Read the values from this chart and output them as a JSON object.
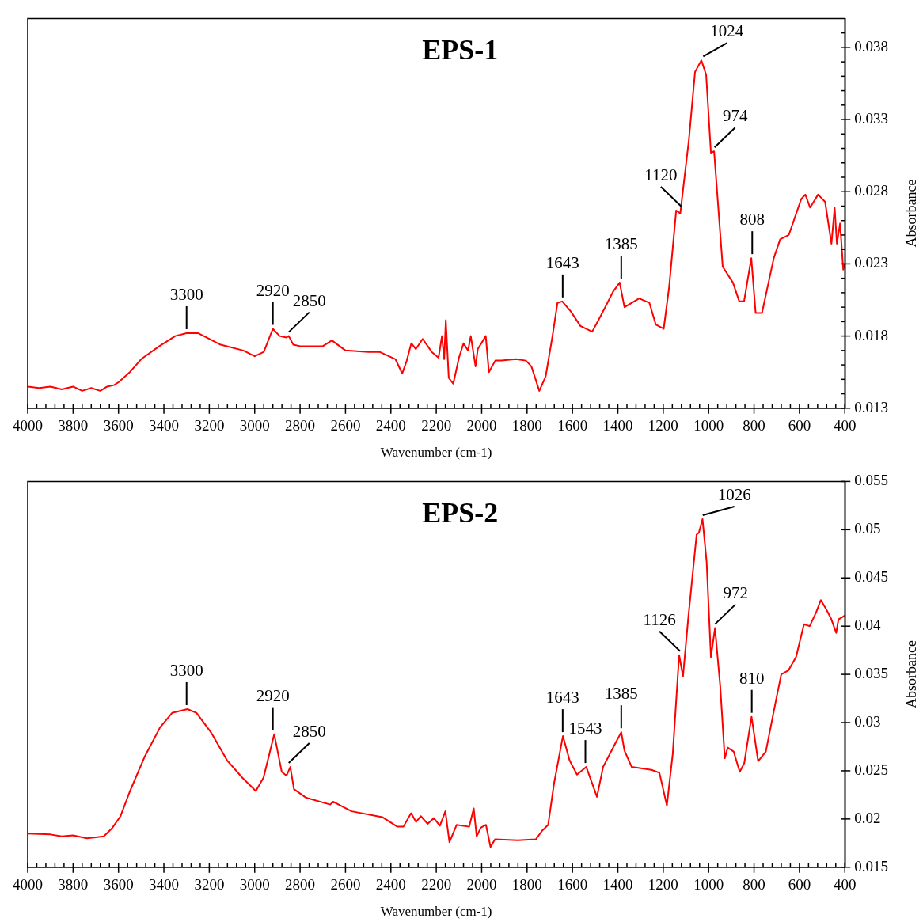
{
  "chart_data": [
    {
      "type": "line",
      "title": "EPS-1",
      "xlabel": "Wavenumber (cm-1)",
      "ylabel": "Absorbance",
      "marker": "none",
      "line_style": "solid",
      "x": [
        4000,
        3950,
        3900,
        3850,
        3800,
        3760,
        3720,
        3680,
        3650,
        3620,
        3600,
        3550,
        3500,
        3420,
        3350,
        3300,
        3250,
        3150,
        3050,
        3000,
        2960,
        2920,
        2890,
        2860,
        2850,
        2830,
        2800,
        2700,
        2660,
        2600,
        2500,
        2450,
        2380,
        2350,
        2330,
        2310,
        2290,
        2260,
        2220,
        2190,
        2175,
        2165,
        2158,
        2145,
        2125,
        2100,
        2080,
        2060,
        2048,
        2027,
        2017,
        1982,
        1968,
        1940,
        1912,
        1850,
        1805,
        1781,
        1746,
        1718,
        1687,
        1666,
        1645,
        1607,
        1565,
        1513,
        1472,
        1420,
        1392,
        1371,
        1306,
        1261,
        1233,
        1198,
        1174,
        1143,
        1125,
        1087,
        1060,
        1032,
        1011,
        990,
        976,
        938,
        893,
        865,
        844,
        812,
        793,
        765,
        713,
        685,
        647,
        592,
        574,
        553,
        518,
        487,
        459,
        445,
        435,
        421,
        407,
        400
      ],
      "series": [
        {
          "color": "#ff0000",
          "values": [
            0.0145,
            0.0144,
            0.0145,
            0.0143,
            0.0145,
            0.0142,
            0.0144,
            0.0142,
            0.0145,
            0.0146,
            0.0148,
            0.0155,
            0.0164,
            0.0173,
            0.018,
            0.0182,
            0.0182,
            0.0174,
            0.017,
            0.0166,
            0.0169,
            0.0185,
            0.018,
            0.0179,
            0.018,
            0.0174,
            0.0173,
            0.0173,
            0.0177,
            0.017,
            0.0169,
            0.0169,
            0.0164,
            0.0154,
            0.0163,
            0.0175,
            0.0171,
            0.0178,
            0.0169,
            0.0165,
            0.018,
            0.0164,
            0.0191,
            0.0151,
            0.0147,
            0.0165,
            0.0175,
            0.017,
            0.018,
            0.0159,
            0.0171,
            0.018,
            0.0155,
            0.0163,
            0.0163,
            0.0164,
            0.0163,
            0.0159,
            0.0142,
            0.0152,
            0.0181,
            0.0203,
            0.0204,
            0.0197,
            0.0187,
            0.0183,
            0.0195,
            0.0211,
            0.0217,
            0.02,
            0.0206,
            0.0203,
            0.0188,
            0.0185,
            0.0214,
            0.0267,
            0.0265,
            0.0316,
            0.0363,
            0.0371,
            0.0361,
            0.0307,
            0.0308,
            0.0228,
            0.0217,
            0.0204,
            0.0204,
            0.0234,
            0.0196,
            0.0196,
            0.0234,
            0.0247,
            0.025,
            0.0275,
            0.0278,
            0.0269,
            0.0278,
            0.0273,
            0.0244,
            0.0269,
            0.0244,
            0.0258,
            0.0226,
            0.023
          ]
        }
      ],
      "xlim": [
        4000,
        400
      ],
      "ylim": [
        0.013,
        0.04
      ],
      "xticks": [
        4000,
        {
          "value": 3960,
          "label": null
        },
        {
          "value": 3920,
          "label": null
        },
        {
          "value": 3880,
          "label": null
        },
        {
          "value": 3840,
          "label": null
        },
        3800,
        {
          "value": 3760,
          "label": null
        },
        {
          "value": 3720,
          "label": null
        },
        {
          "value": 3680,
          "label": null
        },
        {
          "value": 3640,
          "label": null
        },
        3600,
        {
          "value": 3560,
          "label": null
        },
        {
          "value": 3520,
          "label": null
        },
        {
          "value": 3480,
          "label": null
        },
        {
          "value": 3440,
          "label": null
        },
        3400,
        {
          "value": 3360,
          "label": null
        },
        {
          "value": 3320,
          "label": null
        },
        {
          "value": 3280,
          "label": null
        },
        {
          "value": 3240,
          "label": null
        },
        3200,
        {
          "value": 3160,
          "label": null
        },
        {
          "value": 3120,
          "label": null
        },
        {
          "value": 3080,
          "label": null
        },
        {
          "value": 3040,
          "label": null
        },
        3000,
        {
          "value": 2960,
          "label": null
        },
        {
          "value": 2920,
          "label": null
        },
        {
          "value": 2880,
          "label": null
        },
        {
          "value": 2840,
          "label": null
        },
        2800,
        {
          "value": 2760,
          "label": null
        },
        {
          "value": 2720,
          "label": null
        },
        {
          "value": 2680,
          "label": null
        },
        {
          "value": 2640,
          "label": null
        },
        2600,
        {
          "value": 2560,
          "label": null
        },
        {
          "value": 2520,
          "label": null
        },
        {
          "value": 2480,
          "label": null
        },
        {
          "value": 2440,
          "label": null
        },
        2400,
        {
          "value": 2360,
          "label": null
        },
        {
          "value": 2320,
          "label": null
        },
        {
          "value": 2280,
          "label": null
        },
        {
          "value": 2240,
          "label": null
        },
        2200,
        {
          "value": 2160,
          "label": null
        },
        {
          "value": 2120,
          "label": null
        },
        {
          "value": 2080,
          "label": null
        },
        {
          "value": 2040,
          "label": null
        },
        2000,
        {
          "value": 1960,
          "label": null
        },
        {
          "value": 1920,
          "label": null
        },
        {
          "value": 1880,
          "label": null
        },
        {
          "value": 1840,
          "label": null
        },
        1800,
        {
          "value": 1760,
          "label": null
        },
        {
          "value": 1720,
          "label": null
        },
        {
          "value": 1680,
          "label": null
        },
        {
          "value": 1640,
          "label": null
        },
        1600,
        {
          "value": 1560,
          "label": null
        },
        {
          "value": 1520,
          "label": null
        },
        {
          "value": 1480,
          "label": null
        },
        {
          "value": 1440,
          "label": null
        },
        1400,
        {
          "value": 1360,
          "label": null
        },
        {
          "value": 1320,
          "label": null
        },
        {
          "value": 1280,
          "label": null
        },
        {
          "value": 1240,
          "label": null
        },
        1200,
        {
          "value": 1160,
          "label": null
        },
        {
          "value": 1120,
          "label": null
        },
        {
          "value": 1080,
          "label": null
        },
        {
          "value": 1040,
          "label": null
        },
        1000,
        {
          "value": 960,
          "label": null
        },
        {
          "value": 920,
          "label": null
        },
        {
          "value": 880,
          "label": null
        },
        {
          "value": 840,
          "label": null
        },
        800,
        {
          "value": 760,
          "label": null
        },
        {
          "value": 720,
          "label": null
        },
        {
          "value": 680,
          "label": null
        },
        {
          "value": 640,
          "label": null
        },
        600,
        {
          "value": 560,
          "label": null
        },
        {
          "value": 520,
          "label": null
        },
        {
          "value": 480,
          "label": null
        },
        {
          "value": 440,
          "label": null
        },
        400
      ],
      "yticks": [
        0.013,
        {
          "value": 0.014,
          "label": null
        },
        {
          "value": 0.015,
          "label": null
        },
        {
          "value": 0.016,
          "label": null
        },
        {
          "value": 0.017,
          "label": null
        },
        0.018,
        {
          "value": 0.019,
          "label": null
        },
        {
          "value": 0.02,
          "label": null
        },
        {
          "value": 0.021,
          "label": null
        },
        {
          "value": 0.022,
          "label": null
        },
        0.023,
        {
          "value": 0.024,
          "label": null
        },
        {
          "value": 0.025,
          "label": null
        },
        {
          "value": 0.026,
          "label": null
        },
        {
          "value": 0.027,
          "label": null
        },
        0.028,
        {
          "value": 0.029,
          "label": null
        },
        {
          "value": 0.03,
          "label": null
        },
        {
          "value": 0.031,
          "label": null
        },
        {
          "value": 0.032,
          "label": null
        },
        0.033,
        {
          "value": 0.034,
          "label": null
        },
        {
          "value": 0.035,
          "label": null
        },
        {
          "value": 0.036,
          "label": null
        },
        {
          "value": 0.037,
          "label": null
        },
        0.038,
        {
          "value": 0.039,
          "label": null
        }
      ],
      "annotations": [
        {
          "text": "3300",
          "x": 3300,
          "y": 0.0182
        },
        {
          "text": "2920",
          "x": 2920,
          "y": 0.0185
        },
        {
          "text": "2850",
          "x": 2850,
          "y": 0.018
        },
        {
          "text": "1643",
          "x": 1643,
          "y": 0.0204
        },
        {
          "text": "1385",
          "x": 1385,
          "y": 0.0217
        },
        {
          "text": "1120",
          "x": 1120,
          "y": 0.0267
        },
        {
          "text": "1024",
          "x": 1024,
          "y": 0.0371
        },
        {
          "text": "974",
          "x": 974,
          "y": 0.0308
        },
        {
          "text": "808",
          "x": 808,
          "y": 0.0234
        }
      ]
    },
    {
      "type": "line",
      "title": "EPS-2",
      "xlabel": "Wavenumber (cm-1)",
      "ylabel": "Absorbance",
      "marker": "none",
      "line_style": "solid",
      "x": [
        4000,
        3900,
        3850,
        3800,
        3739,
        3700,
        3665,
        3630,
        3591,
        3551,
        3484,
        3417,
        3364,
        3296,
        3256,
        3190,
        3122,
        3055,
        2995,
        2961,
        2914,
        2881,
        2860,
        2843,
        2827,
        2773,
        2667,
        2655,
        2573,
        2438,
        2371,
        2345,
        2311,
        2289,
        2268,
        2238,
        2211,
        2184,
        2160,
        2142,
        2110,
        2055,
        2035,
        2022,
        2004,
        1981,
        1961,
        1941,
        1841,
        1761,
        1733,
        1707,
        1681,
        1642,
        1613,
        1580,
        1539,
        1492,
        1465,
        1412,
        1385,
        1371,
        1339,
        1252,
        1217,
        1184,
        1158,
        1130,
        1113,
        1090,
        1053,
        1043,
        1027,
        1009,
        990,
        972,
        949,
        929,
        916,
        890,
        863,
        843,
        811,
        782,
        748,
        701,
        680,
        649,
        615,
        580,
        555,
        527,
        506,
        483,
        461,
        438,
        428,
        400
      ],
      "series": [
        {
          "color": "#ff0000",
          "values": [
            0.0185,
            0.0184,
            0.0182,
            0.0183,
            0.018,
            0.0181,
            0.0182,
            0.019,
            0.0203,
            0.0228,
            0.0265,
            0.0295,
            0.031,
            0.0314,
            0.031,
            0.0289,
            0.0261,
            0.0243,
            0.0229,
            0.0243,
            0.0288,
            0.0249,
            0.0245,
            0.0254,
            0.0231,
            0.0222,
            0.0215,
            0.0218,
            0.0208,
            0.0202,
            0.0192,
            0.0192,
            0.0206,
            0.0197,
            0.0203,
            0.0195,
            0.0201,
            0.0193,
            0.0208,
            0.0176,
            0.0194,
            0.0192,
            0.0211,
            0.0182,
            0.0191,
            0.0194,
            0.0171,
            0.0179,
            0.0178,
            0.0179,
            0.0188,
            0.0194,
            0.0237,
            0.0286,
            0.0261,
            0.0246,
            0.0254,
            0.0223,
            0.0254,
            0.0278,
            0.029,
            0.0271,
            0.0254,
            0.0251,
            0.0248,
            0.0214,
            0.0268,
            0.037,
            0.0348,
            0.0408,
            0.0495,
            0.0497,
            0.0511,
            0.0467,
            0.0368,
            0.0398,
            0.0338,
            0.0263,
            0.0274,
            0.027,
            0.0249,
            0.0258,
            0.0306,
            0.026,
            0.027,
            0.0326,
            0.035,
            0.0354,
            0.0368,
            0.0402,
            0.04,
            0.0414,
            0.0427,
            0.0418,
            0.0408,
            0.0393,
            0.0407,
            0.0411
          ]
        }
      ],
      "xlim": [
        4000,
        400
      ],
      "ylim": [
        0.015,
        0.055
      ],
      "xticks": [
        4000,
        {
          "value": 3960,
          "label": null
        },
        {
          "value": 3920,
          "label": null
        },
        {
          "value": 3880,
          "label": null
        },
        {
          "value": 3840,
          "label": null
        },
        3800,
        {
          "value": 3760,
          "label": null
        },
        {
          "value": 3720,
          "label": null
        },
        {
          "value": 3680,
          "label": null
        },
        {
          "value": 3640,
          "label": null
        },
        3600,
        {
          "value": 3560,
          "label": null
        },
        {
          "value": 3520,
          "label": null
        },
        {
          "value": 3480,
          "label": null
        },
        {
          "value": 3440,
          "label": null
        },
        3400,
        {
          "value": 3360,
          "label": null
        },
        {
          "value": 3320,
          "label": null
        },
        {
          "value": 3280,
          "label": null
        },
        {
          "value": 3240,
          "label": null
        },
        3200,
        {
          "value": 3160,
          "label": null
        },
        {
          "value": 3120,
          "label": null
        },
        {
          "value": 3080,
          "label": null
        },
        {
          "value": 3040,
          "label": null
        },
        3000,
        {
          "value": 2960,
          "label": null
        },
        {
          "value": 2920,
          "label": null
        },
        {
          "value": 2880,
          "label": null
        },
        {
          "value": 2840,
          "label": null
        },
        2800,
        {
          "value": 2760,
          "label": null
        },
        {
          "value": 2720,
          "label": null
        },
        {
          "value": 2680,
          "label": null
        },
        {
          "value": 2640,
          "label": null
        },
        2600,
        {
          "value": 2560,
          "label": null
        },
        {
          "value": 2520,
          "label": null
        },
        {
          "value": 2480,
          "label": null
        },
        {
          "value": 2440,
          "label": null
        },
        2400,
        {
          "value": 2360,
          "label": null
        },
        {
          "value": 2320,
          "label": null
        },
        {
          "value": 2280,
          "label": null
        },
        {
          "value": 2240,
          "label": null
        },
        2200,
        {
          "value": 2160,
          "label": null
        },
        {
          "value": 2120,
          "label": null
        },
        {
          "value": 2080,
          "label": null
        },
        {
          "value": 2040,
          "label": null
        },
        2000,
        {
          "value": 1960,
          "label": null
        },
        {
          "value": 1920,
          "label": null
        },
        {
          "value": 1880,
          "label": null
        },
        {
          "value": 1840,
          "label": null
        },
        1800,
        {
          "value": 1760,
          "label": null
        },
        {
          "value": 1720,
          "label": null
        },
        {
          "value": 1680,
          "label": null
        },
        {
          "value": 1640,
          "label": null
        },
        1600,
        {
          "value": 1560,
          "label": null
        },
        {
          "value": 1520,
          "label": null
        },
        {
          "value": 1480,
          "label": null
        },
        {
          "value": 1440,
          "label": null
        },
        1400,
        {
          "value": 1360,
          "label": null
        },
        {
          "value": 1320,
          "label": null
        },
        {
          "value": 1280,
          "label": null
        },
        {
          "value": 1240,
          "label": null
        },
        1200,
        {
          "value": 1160,
          "label": null
        },
        {
          "value": 1120,
          "label": null
        },
        {
          "value": 1080,
          "label": null
        },
        {
          "value": 1040,
          "label": null
        },
        1000,
        {
          "value": 960,
          "label": null
        },
        {
          "value": 920,
          "label": null
        },
        {
          "value": 880,
          "label": null
        },
        {
          "value": 840,
          "label": null
        },
        800,
        {
          "value": 760,
          "label": null
        },
        {
          "value": 720,
          "label": null
        },
        {
          "value": 680,
          "label": null
        },
        {
          "value": 640,
          "label": null
        },
        600,
        {
          "value": 560,
          "label": null
        },
        {
          "value": 520,
          "label": null
        },
        {
          "value": 480,
          "label": null
        },
        {
          "value": 440,
          "label": null
        },
        400
      ],
      "yticks": [
        0.015,
        0.02,
        0.025,
        0.03,
        0.035,
        0.04,
        0.045,
        0.05,
        0.055
      ],
      "annotations": [
        {
          "text": "3300",
          "x": 3300,
          "y": 0.0314
        },
        {
          "text": "2920",
          "x": 2920,
          "y": 0.0288
        },
        {
          "text": "2850",
          "x": 2850,
          "y": 0.0254
        },
        {
          "text": "1643",
          "x": 1643,
          "y": 0.0286
        },
        {
          "text": "1543",
          "x": 1543,
          "y": 0.0254
        },
        {
          "text": "1385",
          "x": 1385,
          "y": 0.029
        },
        {
          "text": "1126",
          "x": 1126,
          "y": 0.037
        },
        {
          "text": "1026",
          "x": 1026,
          "y": 0.0511
        },
        {
          "text": "972",
          "x": 972,
          "y": 0.0398
        },
        {
          "text": "810",
          "x": 810,
          "y": 0.0306
        }
      ]
    }
  ]
}
